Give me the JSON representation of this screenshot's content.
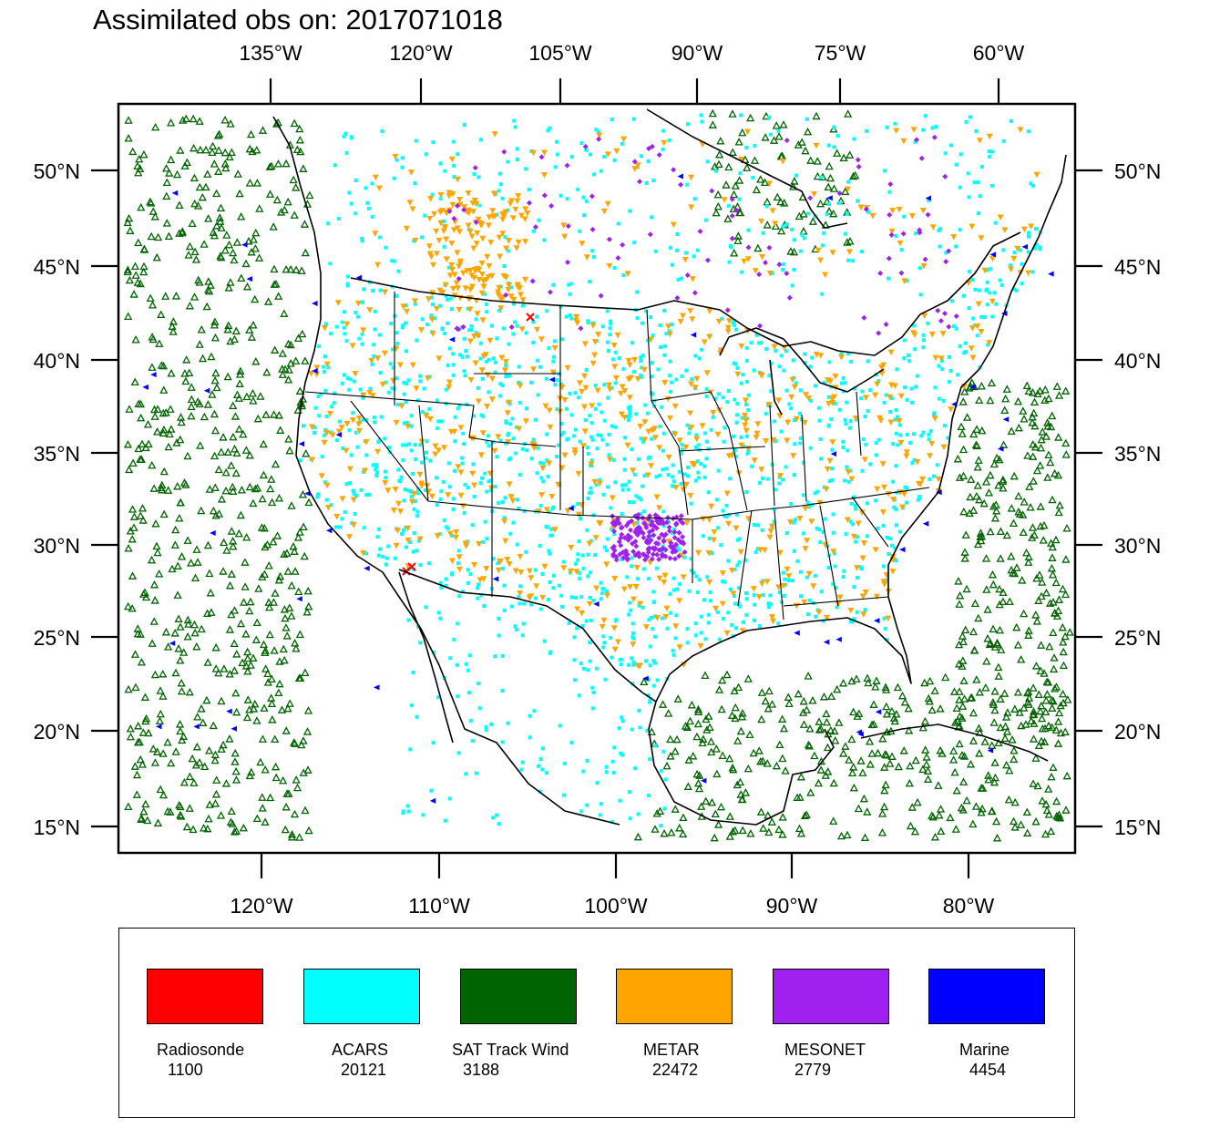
{
  "title": "Assimilated obs on: 2017071018",
  "axes": {
    "top_lon_labels": [
      "135°W",
      "120°W",
      "105°W",
      "90°W",
      "75°W",
      "60°W"
    ],
    "bottom_lon_labels": [
      "120°W",
      "110°W",
      "100°W",
      "90°W",
      "80°W"
    ],
    "lat_labels": [
      "50°N",
      "45°N",
      "40°N",
      "35°N",
      "30°N",
      "25°N",
      "20°N",
      "15°N"
    ]
  },
  "legend": [
    {
      "name": "Radiosonde",
      "count": "1100",
      "color": "#ff0000",
      "marker": "x"
    },
    {
      "name": "ACARS",
      "count": "20121",
      "color": "#00ffff",
      "marker": "square"
    },
    {
      "name": "SAT Track Wind",
      "count": "3188",
      "color": "#006400",
      "marker": "open-triangle-up"
    },
    {
      "name": "METAR",
      "count": "22472",
      "color": "#ffa500",
      "marker": "triangle-down"
    },
    {
      "name": "MESONET",
      "count": "2779",
      "color": "#a020f0",
      "marker": "diamond"
    },
    {
      "name": "Marine",
      "count": "4454",
      "color": "#0000ff",
      "marker": "triangle-left"
    }
  ],
  "basemap": {
    "ocean": "#ffffff",
    "land": "#ffffff",
    "boundary_color": "#000000"
  }
}
